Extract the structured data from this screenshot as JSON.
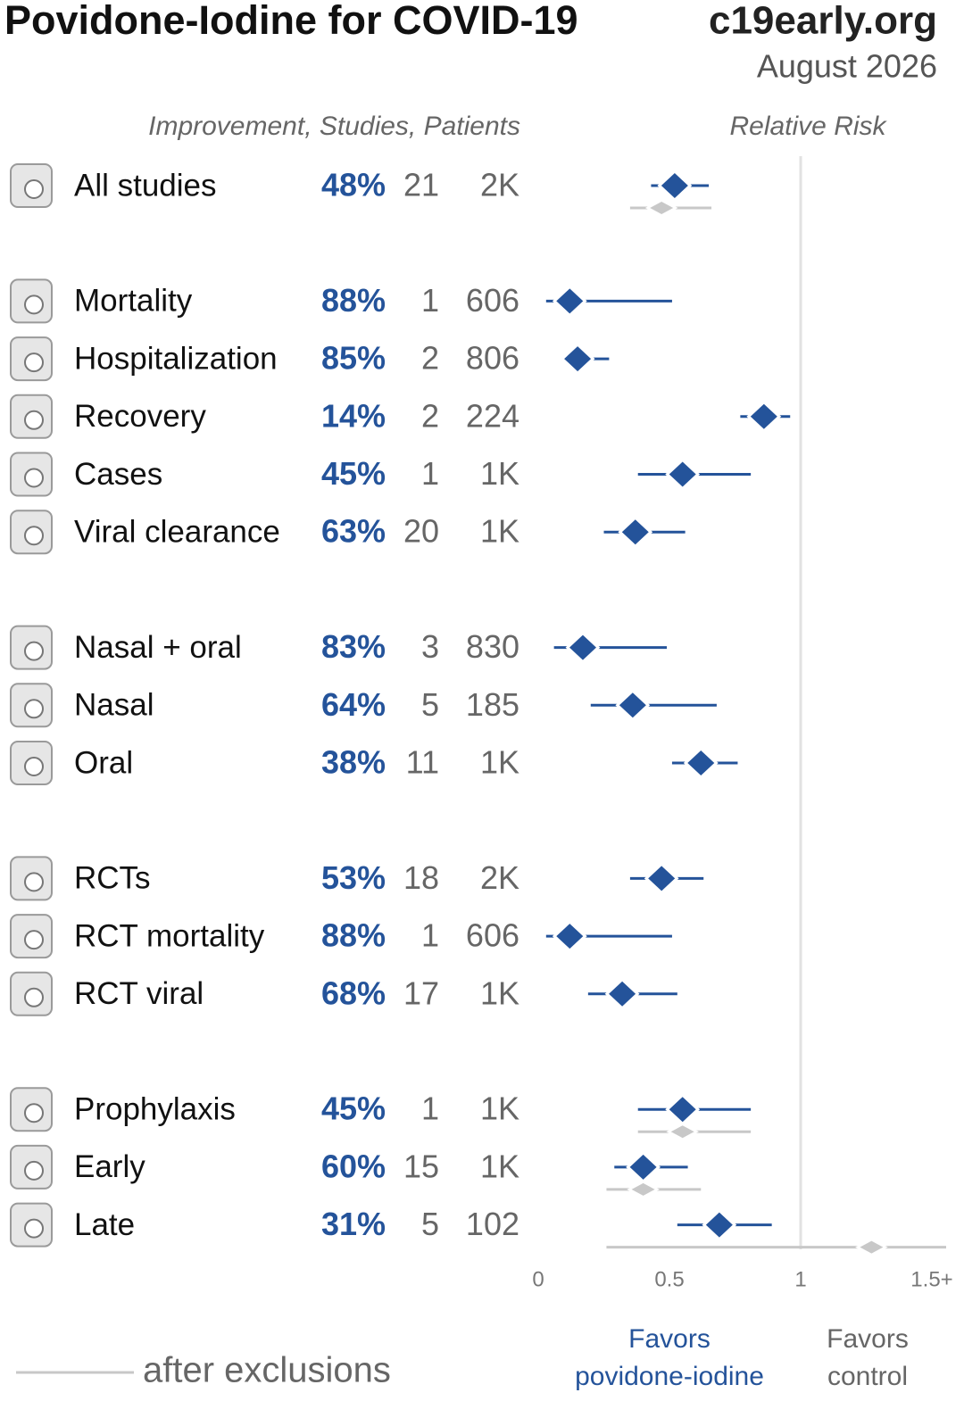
{
  "chart_data": {
    "type": "forest",
    "title": "Povidone-Iodine for COVID-19",
    "source": "c19early.org",
    "date": "August 2026",
    "columns_header": "Improvement, Studies, Patients",
    "axis_header": "Relative Risk",
    "color": "#24539a",
    "exclusion_color": "#c8c8c8",
    "xlim": [
      0,
      1.5
    ],
    "xticks": [
      0,
      0.5,
      1,
      {
        "value": 1.5,
        "label": "1.5+"
      }
    ],
    "reference": 1,
    "groups": [
      {
        "rows": [
          {
            "label": "All studies",
            "improvement": "48%",
            "studies": 21,
            "patients": "2K",
            "rr": 0.52,
            "ci": [
              0.43,
              0.65
            ],
            "excl_rr": 0.47,
            "excl_ci": [
              0.35,
              0.66
            ]
          }
        ]
      },
      {
        "rows": [
          {
            "label": "Mortality",
            "improvement": "88%",
            "studies": 1,
            "patients": 606,
            "rr": 0.12,
            "ci": [
              0.03,
              0.51
            ]
          },
          {
            "label": "Hospitalization",
            "improvement": "85%",
            "studies": 2,
            "patients": 806,
            "rr": 0.15,
            "ci": [
              0.09,
              0.27
            ]
          },
          {
            "label": "Recovery",
            "improvement": "14%",
            "studies": 2,
            "patients": 224,
            "rr": 0.86,
            "ci": [
              0.77,
              0.96
            ]
          },
          {
            "label": "Cases",
            "improvement": "45%",
            "studies": 1,
            "patients": "1K",
            "rr": 0.55,
            "ci": [
              0.38,
              0.81
            ]
          },
          {
            "label": "Viral clearance",
            "improvement": "63%",
            "studies": 20,
            "patients": "1K",
            "rr": 0.37,
            "ci": [
              0.25,
              0.56
            ]
          }
        ]
      },
      {
        "rows": [
          {
            "label": "Nasal + oral",
            "improvement": "83%",
            "studies": 3,
            "patients": 830,
            "rr": 0.17,
            "ci": [
              0.06,
              0.49
            ]
          },
          {
            "label": "Nasal",
            "improvement": "64%",
            "studies": 5,
            "patients": 185,
            "rr": 0.36,
            "ci": [
              0.2,
              0.68
            ]
          },
          {
            "label": "Oral",
            "improvement": "38%",
            "studies": 11,
            "patients": "1K",
            "rr": 0.62,
            "ci": [
              0.51,
              0.76
            ]
          }
        ]
      },
      {
        "rows": [
          {
            "label": "RCTs",
            "improvement": "53%",
            "studies": 18,
            "patients": "2K",
            "rr": 0.47,
            "ci": [
              0.35,
              0.63
            ]
          },
          {
            "label": "RCT mortality",
            "improvement": "88%",
            "studies": 1,
            "patients": 606,
            "rr": 0.12,
            "ci": [
              0.03,
              0.51
            ]
          },
          {
            "label": "RCT viral",
            "improvement": "68%",
            "studies": 17,
            "patients": "1K",
            "rr": 0.32,
            "ci": [
              0.19,
              0.53
            ]
          }
        ]
      },
      {
        "rows": [
          {
            "label": "Prophylaxis",
            "improvement": "45%",
            "studies": 1,
            "patients": "1K",
            "rr": 0.55,
            "ci": [
              0.38,
              0.81
            ],
            "excl_rr": 0.55,
            "excl_ci": [
              0.38,
              0.81
            ]
          },
          {
            "label": "Early",
            "improvement": "60%",
            "studies": 15,
            "patients": "1K",
            "rr": 0.4,
            "ci": [
              0.29,
              0.57
            ],
            "excl_rr": 0.4,
            "excl_ci": [
              0.26,
              0.62
            ]
          },
          {
            "label": "Late",
            "improvement": "31%",
            "studies": 5,
            "patients": 102,
            "rr": 0.69,
            "ci": [
              0.53,
              0.89
            ],
            "excl_rr": 1.27,
            "excl_ci": [
              0.26,
              1.56
            ]
          }
        ]
      }
    ],
    "legend": "after exclusions",
    "favors_left": [
      "Favors",
      "povidone-iodine"
    ],
    "favors_right": [
      "Favors",
      "control"
    ]
  }
}
